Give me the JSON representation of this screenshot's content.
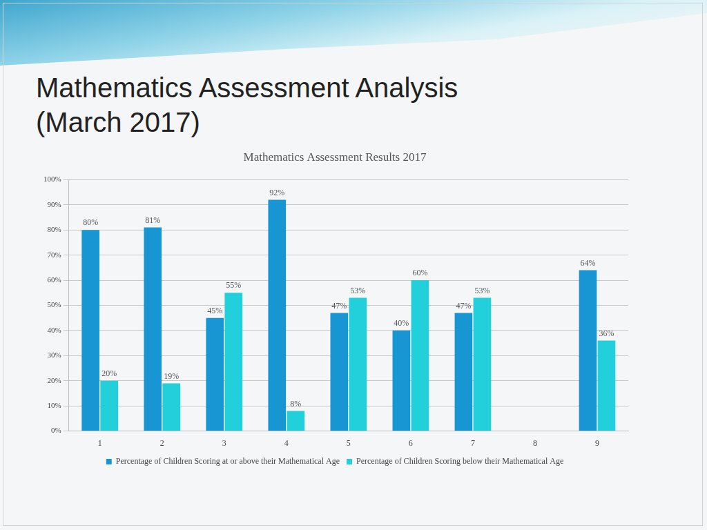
{
  "header": {
    "title": "Mathematics Assessment Analysis (March 2017)"
  },
  "chart_data": {
    "type": "bar",
    "title": "Mathematics Assessment Results 2017",
    "categories": [
      "1",
      "2",
      "3",
      "4",
      "5",
      "6",
      "7",
      "8",
      "9"
    ],
    "series": [
      {
        "name": "Percentage of Children Scoring at or above their Mathematical Age",
        "color": "#1896d3",
        "values": [
          80,
          81,
          45,
          92,
          47,
          40,
          47,
          null,
          64
        ],
        "value_labels": [
          "80%",
          "81%",
          "45%",
          "92%",
          "47%",
          "40%",
          "47%",
          null,
          "64%"
        ]
      },
      {
        "name": "Percentage of Children Scoring below their Mathematical Age",
        "color": "#22d0dc",
        "values": [
          20,
          19,
          55,
          8,
          53,
          60,
          53,
          null,
          36
        ],
        "value_labels": [
          "20%",
          "19%",
          "55%",
          "8%",
          "53%",
          "60%",
          "53%",
          null,
          "36%"
        ]
      }
    ],
    "ylim": [
      0,
      100
    ],
    "yticks": [
      {
        "value": 0,
        "label": "0%"
      },
      {
        "value": 10,
        "label": "10%"
      },
      {
        "value": 20,
        "label": "20%"
      },
      {
        "value": 30,
        "label": "30%"
      },
      {
        "value": 40,
        "label": "40%"
      },
      {
        "value": 50,
        "label": "50%"
      },
      {
        "value": 60,
        "label": "60%"
      },
      {
        "value": 70,
        "label": "70%"
      },
      {
        "value": 80,
        "label": "80%"
      },
      {
        "value": 90,
        "label": "90%"
      },
      {
        "value": 100,
        "label": "100%"
      }
    ],
    "grid": true,
    "legend": "bottom",
    "data_labels": true
  }
}
